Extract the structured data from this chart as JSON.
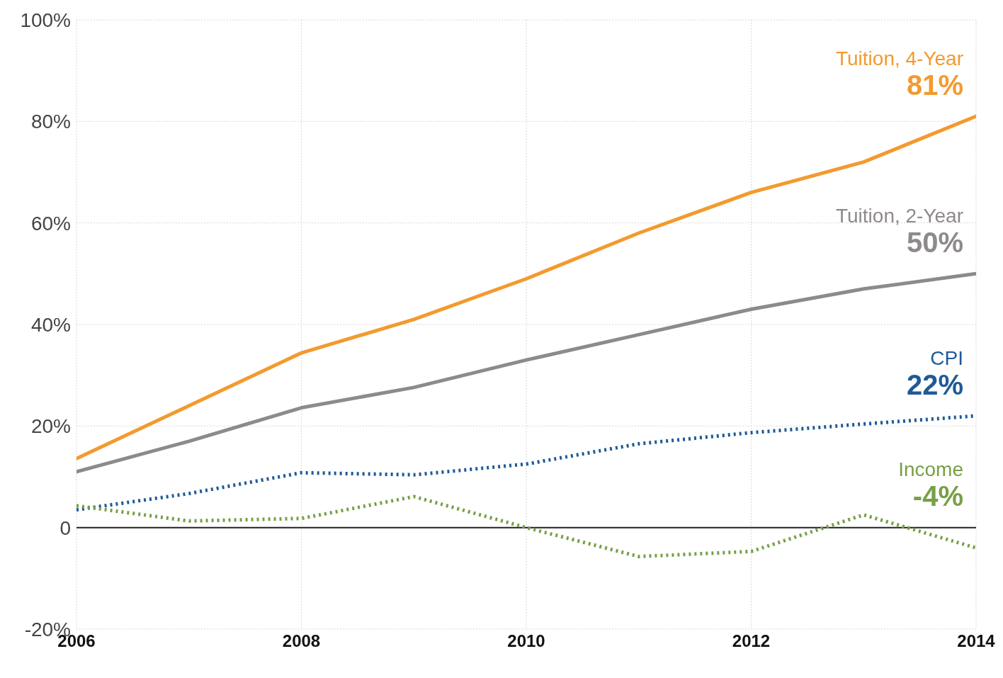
{
  "chart_data": {
    "type": "line",
    "x": [
      2006,
      2007,
      2008,
      2009,
      2010,
      2011,
      2012,
      2013,
      2014
    ],
    "series": [
      {
        "name": "Tuition, 4-Year",
        "color": "#f39a2e",
        "line_style": "solid",
        "values": [
          13.6,
          24,
          34.4,
          41,
          49,
          58,
          66,
          72,
          81
        ],
        "value_labels": [
          null,
          null,
          null,
          null,
          null,
          null,
          null,
          null,
          "81%"
        ]
      },
      {
        "name": "Tuition, 2-Year",
        "color": "#8f8a8a",
        "line_style": "solid",
        "values": [
          11,
          17,
          23.6,
          27.6,
          33,
          38,
          43,
          47,
          50
        ],
        "value_labels": [
          null,
          null,
          null,
          null,
          null,
          null,
          null,
          null,
          "50%"
        ]
      },
      {
        "name": "CPI",
        "color": "#1f5a96",
        "line_style": "dotted",
        "values": [
          3.5,
          6.7,
          10.8,
          10.4,
          12.5,
          16.5,
          18.7,
          20.4,
          22
        ],
        "value_labels": [
          null,
          null,
          null,
          null,
          null,
          null,
          null,
          null,
          "22%"
        ]
      },
      {
        "name": "Income",
        "color": "#77a046",
        "line_style": "dotted",
        "values": [
          4.3,
          1.3,
          1.8,
          6.1,
          0,
          -5.7,
          -4.7,
          2.5,
          -4
        ],
        "value_labels": [
          null,
          null,
          null,
          null,
          null,
          null,
          null,
          null,
          "-4%"
        ]
      }
    ],
    "xlim": [
      2006,
      2014
    ],
    "xticks": [
      2006,
      2008,
      2010,
      2012,
      2014
    ],
    "ylim": [
      -20,
      100
    ],
    "yticks": [
      {
        "value": -20,
        "label": "-20%"
      },
      {
        "value": 0,
        "label": "0"
      },
      {
        "value": 20,
        "label": "20%"
      },
      {
        "value": 40,
        "label": "40%"
      },
      {
        "value": 60,
        "label": "60%"
      },
      {
        "value": 80,
        "label": "80%"
      },
      {
        "value": 100,
        "label": "100%"
      }
    ],
    "ref_lines": [
      {
        "axis": "y",
        "value": 0,
        "color": "#222222"
      }
    ],
    "grid": true,
    "marker": "none"
  }
}
